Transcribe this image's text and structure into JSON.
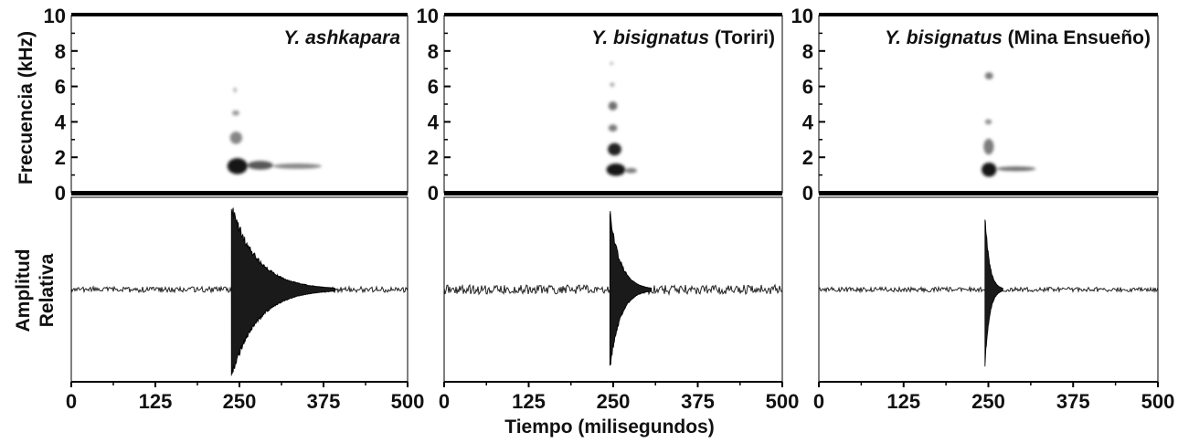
{
  "figure": {
    "ylabel_spectrogram": "Frecuencia (kHz)",
    "ylabel_waveform_line1": "Amplitud",
    "ylabel_waveform_line2": "Relativa",
    "xlabel": "Tiempo (milisegundos)"
  },
  "chart_data": [
    {
      "type": "heatmap",
      "panel": "spectrogram",
      "title_italic": "Y. ashkapara",
      "title_rest": "",
      "xlabel": "",
      "ylabel": "Frecuencia (kHz)",
      "xlim": [
        0,
        500
      ],
      "ylim": [
        0,
        10
      ],
      "yticks": [
        "0",
        "2",
        "4",
        "6",
        "8",
        "10"
      ],
      "call_onset_ms": 240,
      "energy_blobs": [
        {
          "t0": 232,
          "t1": 262,
          "f": 1.5,
          "df": 0.45,
          "level": 0.95
        },
        {
          "t0": 262,
          "t1": 300,
          "f": 1.55,
          "df": 0.25,
          "level": 0.65
        },
        {
          "t0": 300,
          "t1": 372,
          "f": 1.5,
          "df": 0.15,
          "level": 0.45
        },
        {
          "t0": 236,
          "t1": 254,
          "f": 3.1,
          "df": 0.35,
          "level": 0.45
        },
        {
          "t0": 239,
          "t1": 250,
          "f": 4.5,
          "df": 0.15,
          "level": 0.35
        },
        {
          "t0": 241,
          "t1": 246,
          "f": 5.8,
          "df": 0.15,
          "level": 0.25
        }
      ]
    },
    {
      "type": "line",
      "panel": "waveform",
      "title": "",
      "xlabel": "Tiempo (milisegundos)",
      "ylabel": "Amplitud Relativa",
      "xlim": [
        0,
        500
      ],
      "ylim": [
        -1,
        1
      ],
      "xticks": [
        "0",
        "125",
        "250",
        "375",
        "500"
      ],
      "call_onset_ms": 238,
      "peak_amplitude": 0.98,
      "decay_ms": 70,
      "noise_amplitude": 0.03
    },
    {
      "type": "heatmap",
      "panel": "spectrogram",
      "title_italic": "Y. bisignatus",
      "title_rest": "(Toriri)",
      "xlabel": "",
      "ylabel": "",
      "xlim": [
        0,
        500
      ],
      "ylim": [
        0,
        10
      ],
      "yticks": [
        "0",
        "2",
        "4",
        "6",
        "8",
        "10"
      ],
      "call_onset_ms": 245,
      "energy_blobs": [
        {
          "t0": 240,
          "t1": 268,
          "f": 1.3,
          "df": 0.35,
          "level": 0.95
        },
        {
          "t0": 268,
          "t1": 285,
          "f": 1.25,
          "df": 0.15,
          "level": 0.5
        },
        {
          "t0": 242,
          "t1": 262,
          "f": 2.45,
          "df": 0.35,
          "level": 0.9
        },
        {
          "t0": 243,
          "t1": 256,
          "f": 3.65,
          "df": 0.2,
          "level": 0.5
        },
        {
          "t0": 243,
          "t1": 256,
          "f": 4.9,
          "df": 0.25,
          "level": 0.55
        },
        {
          "t0": 245,
          "t1": 252,
          "f": 6.1,
          "df": 0.12,
          "level": 0.3
        },
        {
          "t0": 245,
          "t1": 250,
          "f": 7.3,
          "df": 0.1,
          "level": 0.2
        }
      ]
    },
    {
      "type": "line",
      "panel": "waveform",
      "title": "",
      "xlabel": "Tiempo (milisegundos)",
      "ylabel": "",
      "xlim": [
        0,
        500
      ],
      "ylim": [
        -1,
        1
      ],
      "xticks": [
        "0",
        "125",
        "250",
        "375",
        "500"
      ],
      "call_onset_ms": 245,
      "peak_amplitude": 0.9,
      "decay_ms": 28,
      "noise_amplitude": 0.05
    },
    {
      "type": "heatmap",
      "panel": "spectrogram",
      "title_italic": "Y. bisignatus",
      "title_rest": "(Mina Ensueño)",
      "xlabel": "",
      "ylabel": "",
      "xlim": [
        0,
        500
      ],
      "ylim": [
        0,
        10
      ],
      "yticks": [
        "0",
        "2",
        "4",
        "6",
        "8",
        "10"
      ],
      "call_onset_ms": 245,
      "energy_blobs": [
        {
          "t0": 240,
          "t1": 262,
          "f": 1.3,
          "df": 0.4,
          "level": 0.95
        },
        {
          "t0": 262,
          "t1": 320,
          "f": 1.35,
          "df": 0.13,
          "level": 0.55
        },
        {
          "t0": 243,
          "t1": 258,
          "f": 2.6,
          "df": 0.45,
          "level": 0.5
        },
        {
          "t0": 245,
          "t1": 255,
          "f": 4.0,
          "df": 0.15,
          "level": 0.4
        },
        {
          "t0": 245,
          "t1": 257,
          "f": 6.6,
          "df": 0.2,
          "level": 0.5
        }
      ]
    },
    {
      "type": "line",
      "panel": "waveform",
      "title": "",
      "xlabel": "Tiempo (milisegundos)",
      "ylabel": "",
      "xlim": [
        0,
        500
      ],
      "ylim": [
        -1,
        1
      ],
      "xticks": [
        "0",
        "125",
        "250",
        "375",
        "500"
      ],
      "call_onset_ms": 245,
      "peak_amplitude": 0.85,
      "decay_ms": 12,
      "noise_amplitude": 0.025
    }
  ]
}
